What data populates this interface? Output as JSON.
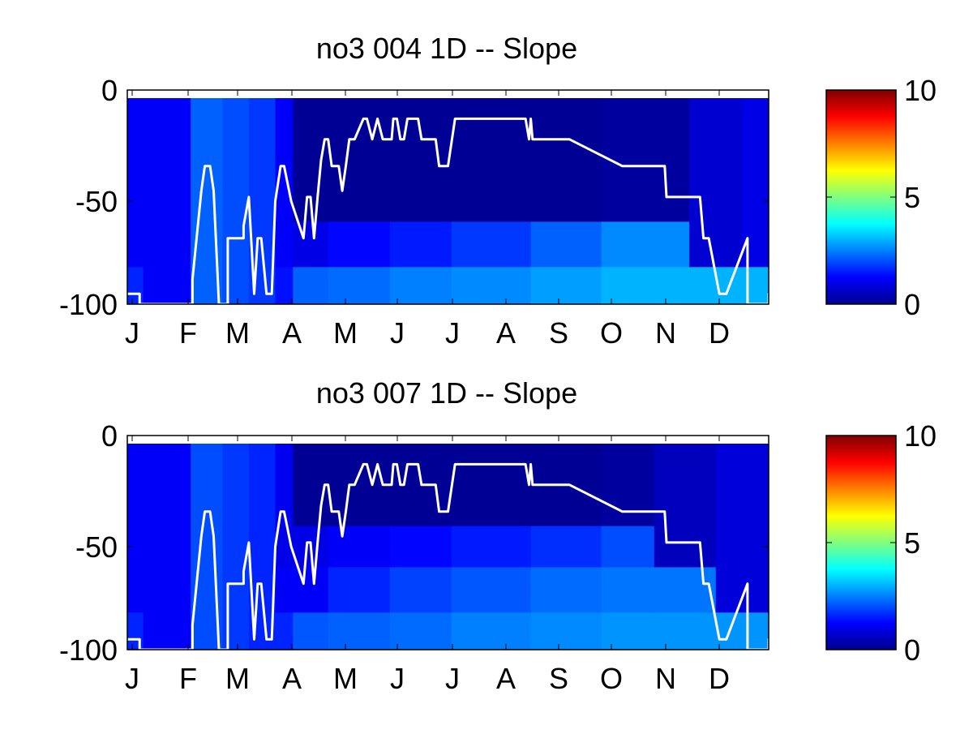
{
  "figure": {
    "colorbar_stops": [
      "#00008f",
      "#0000ff",
      "#0080ff",
      "#00ffff",
      "#80ff80",
      "#ffff00",
      "#ff8000",
      "#ff0000",
      "#800000"
    ]
  },
  "chart_data": [
    {
      "type": "heatmap",
      "title": "no3  004 1D   -- Slope",
      "xlabel": "",
      "ylabel": "",
      "x_tick_labels": [
        "J",
        "F",
        "M",
        "A",
        "M",
        "J",
        "J",
        "A",
        "S",
        "O",
        "N",
        "D"
      ],
      "y_ticks": [
        0,
        -50,
        -100
      ],
      "ylim": [
        -100,
        0
      ],
      "xlim": [
        1,
        365
      ],
      "colorbar": {
        "ticks": [
          0,
          5,
          10
        ],
        "clim": [
          0,
          10
        ],
        "colormap": "jet"
      },
      "depth_bands": [
        [
          0,
          -60
        ],
        [
          -60,
          -82
        ],
        [
          -82,
          -100
        ]
      ],
      "columns": [
        {
          "x": [
            1,
            10
          ],
          "v": [
            1.2,
            1.2,
            1.6
          ]
        },
        {
          "x": [
            10,
            37
          ],
          "v": [
            1.2,
            1.2,
            1.2
          ]
        },
        {
          "x": [
            37,
            55
          ],
          "v": [
            2.2,
            2.2,
            2.2
          ]
        },
        {
          "x": [
            55,
            70
          ],
          "v": [
            2.0,
            2.0,
            2.0
          ]
        },
        {
          "x": [
            70,
            85
          ],
          "v": [
            1.8,
            1.8,
            1.8
          ]
        },
        {
          "x": [
            85,
            95
          ],
          "v": [
            1.2,
            1.2,
            1.4
          ]
        },
        {
          "x": [
            95,
            115
          ],
          "v": [
            0.2,
            1.0,
            2.2
          ]
        },
        {
          "x": [
            115,
            150
          ],
          "v": [
            0.2,
            1.3,
            2.3
          ]
        },
        {
          "x": [
            150,
            185
          ],
          "v": [
            0.2,
            1.5,
            2.5
          ]
        },
        {
          "x": [
            185,
            230
          ],
          "v": [
            0.2,
            1.8,
            2.6
          ]
        },
        {
          "x": [
            230,
            270
          ],
          "v": [
            0.2,
            2.2,
            2.8
          ]
        },
        {
          "x": [
            270,
            320
          ],
          "v": [
            0.3,
            2.6,
            3.0
          ]
        },
        {
          "x": [
            320,
            350
          ],
          "v": [
            0.8,
            0.8,
            3.0
          ]
        },
        {
          "x": [
            350,
            365
          ],
          "v": [
            1.0,
            1.0,
            3.0
          ]
        }
      ],
      "mixed_layer": {
        "day": [
          1,
          8,
          8,
          38,
          38,
          43,
          45,
          48,
          50,
          53,
          58,
          58,
          67,
          67,
          70,
          73,
          75,
          77,
          80,
          83,
          85,
          88,
          90,
          94,
          94,
          101,
          103,
          105,
          107,
          109,
          111,
          113,
          115,
          117,
          121,
          123,
          125,
          127,
          130,
          135,
          137,
          140,
          143,
          146,
          151,
          152,
          154,
          156,
          158,
          160,
          162,
          166,
          168,
          176,
          178,
          183,
          187,
          194,
          227,
          229,
          230,
          231,
          232,
          251,
          252,
          282,
          306,
          307,
          326,
          328,
          331,
          337,
          341,
          353,
          353,
          365,
          365,
          366,
          368,
          370
        ],
        "depth": [
          -95,
          -95,
          -100,
          -100,
          -88,
          -45,
          -33,
          -33,
          -45,
          -100,
          -100,
          -68,
          -68,
          -62,
          -48,
          -95,
          -68,
          -68,
          -95,
          -95,
          -50,
          -33,
          -33,
          -50,
          -50,
          -68,
          -48,
          -48,
          -68,
          -48,
          -30,
          -20,
          -20,
          -33,
          -33,
          -45,
          -33,
          -20,
          -20,
          -10,
          -10,
          -20,
          -10,
          -20,
          -20,
          -10,
          -10,
          -20,
          -20,
          -10,
          -10,
          -10,
          -20,
          -20,
          -33,
          -33,
          -10,
          -10,
          -10,
          -20,
          -10,
          -20,
          -20,
          -20,
          -20,
          -33,
          -33,
          -48,
          -48,
          -68,
          -68,
          -95,
          -95,
          -68,
          -100,
          -100,
          -95,
          -95,
          -100,
          -68
        ]
      }
    },
    {
      "type": "heatmap",
      "title": "no3  007 1D   -- Slope",
      "xlabel": "",
      "ylabel": "",
      "x_tick_labels": [
        "J",
        "F",
        "M",
        "A",
        "M",
        "J",
        "J",
        "A",
        "S",
        "O",
        "N",
        "D"
      ],
      "y_ticks": [
        0,
        -50,
        -100
      ],
      "ylim": [
        -100,
        0
      ],
      "xlim": [
        1,
        365
      ],
      "colorbar": {
        "ticks": [
          0,
          5,
          10
        ],
        "clim": [
          0,
          10
        ],
        "colormap": "jet"
      },
      "depth_bands": [
        [
          0,
          -40
        ],
        [
          -40,
          -60
        ],
        [
          -60,
          -82
        ],
        [
          -82,
          -100
        ]
      ],
      "columns": [
        {
          "x": [
            1,
            10
          ],
          "v": [
            1.2,
            1.2,
            1.2,
            1.6
          ]
        },
        {
          "x": [
            10,
            37
          ],
          "v": [
            1.2,
            1.2,
            1.2,
            1.2
          ]
        },
        {
          "x": [
            37,
            55
          ],
          "v": [
            2.0,
            2.0,
            2.0,
            2.0
          ]
        },
        {
          "x": [
            55,
            70
          ],
          "v": [
            1.8,
            1.8,
            1.8,
            1.8
          ]
        },
        {
          "x": [
            70,
            85
          ],
          "v": [
            1.6,
            1.6,
            1.6,
            1.6
          ]
        },
        {
          "x": [
            85,
            95
          ],
          "v": [
            1.1,
            1.0,
            1.2,
            1.6
          ]
        },
        {
          "x": [
            95,
            115
          ],
          "v": [
            0.2,
            1.0,
            1.2,
            2.1
          ]
        },
        {
          "x": [
            115,
            150
          ],
          "v": [
            0.2,
            1.2,
            1.6,
            2.2
          ]
        },
        {
          "x": [
            150,
            185
          ],
          "v": [
            0.2,
            1.3,
            1.9,
            2.3
          ]
        },
        {
          "x": [
            185,
            230
          ],
          "v": [
            0.2,
            1.5,
            2.1,
            2.5
          ]
        },
        {
          "x": [
            230,
            270
          ],
          "v": [
            0.2,
            1.7,
            2.3,
            2.6
          ]
        },
        {
          "x": [
            270,
            300
          ],
          "v": [
            0.3,
            2.0,
            2.4,
            2.7
          ]
        },
        {
          "x": [
            300,
            335
          ],
          "v": [
            0.6,
            0.6,
            2.4,
            2.7
          ]
        },
        {
          "x": [
            335,
            365
          ],
          "v": [
            0.9,
            0.9,
            0.9,
            2.7
          ]
        }
      ],
      "mixed_layer": {
        "day": [
          1,
          8,
          8,
          38,
          38,
          43,
          45,
          48,
          50,
          53,
          58,
          58,
          67,
          67,
          70,
          73,
          75,
          77,
          80,
          83,
          85,
          88,
          90,
          94,
          94,
          101,
          103,
          105,
          107,
          109,
          111,
          113,
          115,
          117,
          121,
          123,
          125,
          127,
          130,
          135,
          137,
          140,
          143,
          146,
          151,
          152,
          154,
          156,
          158,
          160,
          162,
          166,
          168,
          176,
          178,
          183,
          187,
          194,
          227,
          229,
          230,
          231,
          232,
          251,
          252,
          282,
          306,
          307,
          326,
          328,
          331,
          337,
          341,
          353,
          353,
          365,
          365,
          366,
          368,
          370
        ],
        "depth": [
          -95,
          -95,
          -100,
          -100,
          -88,
          -45,
          -33,
          -33,
          -45,
          -100,
          -100,
          -68,
          -68,
          -62,
          -48,
          -95,
          -68,
          -68,
          -95,
          -95,
          -50,
          -33,
          -33,
          -50,
          -50,
          -68,
          -48,
          -48,
          -68,
          -48,
          -30,
          -20,
          -20,
          -33,
          -33,
          -45,
          -33,
          -20,
          -20,
          -10,
          -10,
          -20,
          -10,
          -20,
          -20,
          -10,
          -10,
          -20,
          -20,
          -10,
          -10,
          -10,
          -20,
          -20,
          -33,
          -33,
          -10,
          -10,
          -10,
          -20,
          -10,
          -20,
          -20,
          -20,
          -20,
          -33,
          -33,
          -48,
          -48,
          -68,
          -68,
          -95,
          -95,
          -68,
          -100,
          -100,
          -95,
          -95,
          -100,
          -68
        ]
      }
    }
  ]
}
